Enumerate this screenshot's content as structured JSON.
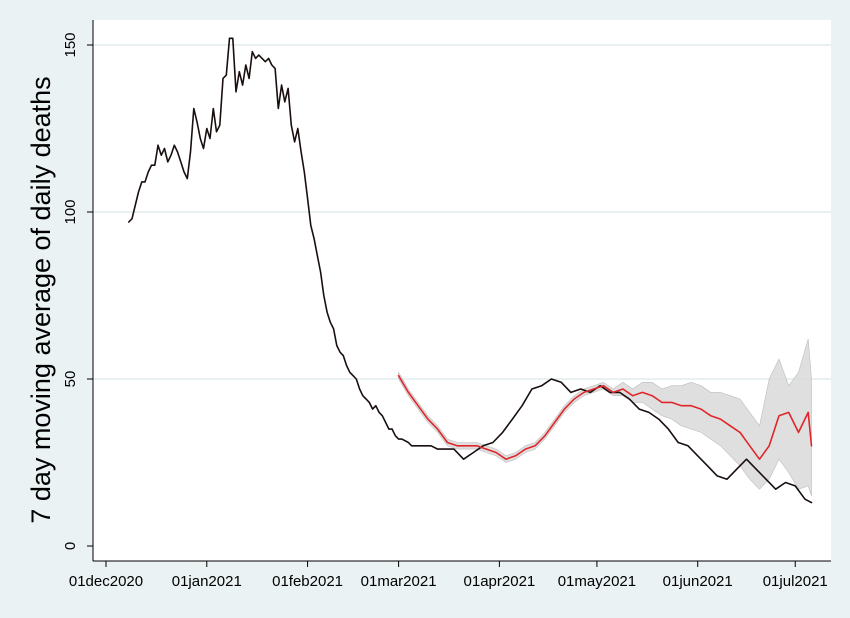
{
  "chart_data": {
    "type": "line",
    "title": "",
    "xlabel": "",
    "ylabel": "7 day moving average of daily deaths",
    "ylim": [
      0,
      150
    ],
    "y_ticks": [
      0,
      50,
      100,
      150
    ],
    "x_range": [
      "2020-11-27",
      "2021-07-12"
    ],
    "x_ticks": [
      {
        "date": "2020-12-01",
        "label": "01dec2020"
      },
      {
        "date": "2021-01-01",
        "label": "01jan2021"
      },
      {
        "date": "2021-02-01",
        "label": "01feb2021"
      },
      {
        "date": "2021-03-01",
        "label": "01mar2021"
      },
      {
        "date": "2021-04-01",
        "label": "01apr2021"
      },
      {
        "date": "2021-05-01",
        "label": "01may2021"
      },
      {
        "date": "2021-06-01",
        "label": "01jun2021"
      },
      {
        "date": "2021-07-01",
        "label": "01jul2021"
      }
    ],
    "grid": true,
    "legend": "none",
    "colors": {
      "background": "#eaf2f3",
      "plot_background": "#ffffff",
      "gridline": "#dce8ea",
      "observed": "#1a0f0f",
      "modelled": "#e0262a",
      "band": "#d9d9d9"
    },
    "series": [
      {
        "style": "observed",
        "x": [
          "2020-12-08",
          "2020-12-09",
          "2020-12-11",
          "2020-12-12",
          "2020-12-13",
          "2020-12-14",
          "2020-12-15",
          "2020-12-16",
          "2020-12-17",
          "2020-12-18",
          "2020-12-19",
          "2020-12-20",
          "2020-12-21",
          "2020-12-22",
          "2020-12-23",
          "2020-12-24",
          "2020-12-25",
          "2020-12-26",
          "2020-12-27",
          "2020-12-28",
          "2020-12-29",
          "2020-12-30",
          "2020-12-31",
          "2021-01-01",
          "2021-01-02",
          "2021-01-03",
          "2021-01-04",
          "2021-01-05",
          "2021-01-06",
          "2021-01-07",
          "2021-01-08",
          "2021-01-09",
          "2021-01-10",
          "2021-01-11",
          "2021-01-12",
          "2021-01-13",
          "2021-01-14",
          "2021-01-15",
          "2021-01-16",
          "2021-01-17",
          "2021-01-18",
          "2021-01-19",
          "2021-01-20",
          "2021-01-21",
          "2021-01-22",
          "2021-01-23",
          "2021-01-24",
          "2021-01-25",
          "2021-01-26",
          "2021-01-27",
          "2021-01-28",
          "2021-01-29",
          "2021-01-30",
          "2021-01-31",
          "2021-02-01",
          "2021-02-02",
          "2021-02-03",
          "2021-02-04",
          "2021-02-05",
          "2021-02-06",
          "2021-02-07",
          "2021-02-08",
          "2021-02-09",
          "2021-02-10",
          "2021-02-11",
          "2021-02-12",
          "2021-02-13",
          "2021-02-14",
          "2021-02-15",
          "2021-02-16",
          "2021-02-17",
          "2021-02-18",
          "2021-02-19",
          "2021-02-20",
          "2021-02-21",
          "2021-02-22",
          "2021-02-23",
          "2021-02-24",
          "2021-02-25",
          "2021-02-26",
          "2021-02-27",
          "2021-02-28",
          "2021-03-01",
          "2021-03-02",
          "2021-03-04",
          "2021-03-05",
          "2021-03-07",
          "2021-03-09",
          "2021-03-11",
          "2021-03-13",
          "2021-03-15",
          "2021-03-18",
          "2021-03-21",
          "2021-03-24",
          "2021-03-27",
          "2021-03-30",
          "2021-04-02",
          "2021-04-05",
          "2021-04-08",
          "2021-04-11",
          "2021-04-14",
          "2021-04-17",
          "2021-04-20",
          "2021-04-23",
          "2021-04-26",
          "2021-04-29",
          "2021-05-02",
          "2021-05-05",
          "2021-05-08",
          "2021-05-11",
          "2021-05-14",
          "2021-05-17",
          "2021-05-20",
          "2021-05-23",
          "2021-05-26",
          "2021-05-29",
          "2021-06-01",
          "2021-06-04",
          "2021-06-07",
          "2021-06-10",
          "2021-06-13",
          "2021-06-16",
          "2021-06-19",
          "2021-06-22",
          "2021-06-25",
          "2021-06-28",
          "2021-07-01",
          "2021-07-04",
          "2021-07-06"
        ],
        "values": [
          97,
          98,
          106,
          109,
          109,
          112,
          114,
          114,
          120,
          117,
          119,
          115,
          117,
          120,
          118,
          115,
          112,
          110,
          118,
          131,
          127,
          122,
          119,
          125,
          122,
          131,
          124,
          126,
          140,
          141,
          152,
          152,
          136,
          142,
          138,
          144,
          140,
          148,
          146,
          147,
          146,
          145,
          146,
          144,
          143,
          131,
          138,
          133,
          137,
          126,
          121,
          125,
          118,
          112,
          104,
          96,
          92,
          87,
          82,
          75,
          70,
          67,
          65,
          60,
          58,
          57,
          54,
          52,
          51,
          50,
          47,
          45,
          44,
          43,
          41,
          42,
          40,
          39,
          37,
          35,
          35,
          33,
          32,
          32,
          31,
          30,
          30,
          30,
          30,
          29,
          29,
          29,
          26,
          28,
          30,
          31,
          34,
          38,
          42,
          47,
          48,
          50,
          49,
          46,
          47,
          46,
          48,
          46,
          46,
          44,
          41,
          40,
          38,
          35,
          31,
          30,
          27,
          24,
          21,
          20,
          23,
          26,
          23,
          20,
          17,
          19,
          18,
          14,
          13
        ],
        "band_lower": [],
        "band_upper": []
      },
      {
        "style": "modelled",
        "x": [
          "2021-03-01",
          "2021-03-04",
          "2021-03-07",
          "2021-03-10",
          "2021-03-13",
          "2021-03-16",
          "2021-03-19",
          "2021-03-22",
          "2021-03-25",
          "2021-03-28",
          "2021-03-31",
          "2021-04-03",
          "2021-04-06",
          "2021-04-09",
          "2021-04-12",
          "2021-04-15",
          "2021-04-18",
          "2021-04-21",
          "2021-04-24",
          "2021-04-27",
          "2021-04-30",
          "2021-05-03",
          "2021-05-06",
          "2021-05-09",
          "2021-05-12",
          "2021-05-15",
          "2021-05-18",
          "2021-05-21",
          "2021-05-24",
          "2021-05-27",
          "2021-05-30",
          "2021-06-02",
          "2021-06-05",
          "2021-06-08",
          "2021-06-11",
          "2021-06-14",
          "2021-06-17",
          "2021-06-20",
          "2021-06-23",
          "2021-06-26",
          "2021-06-29",
          "2021-07-02",
          "2021-07-05",
          "2021-07-06"
        ],
        "values": [
          51,
          46,
          42,
          38,
          35,
          31,
          30,
          30,
          30,
          29,
          28,
          26,
          27,
          29,
          30,
          33,
          37,
          41,
          44,
          46,
          47,
          48,
          46,
          47,
          45,
          46,
          45,
          43,
          43,
          42,
          42,
          41,
          39,
          38,
          36,
          34,
          30,
          26,
          30,
          39,
          40,
          34,
          40,
          30
        ],
        "band_lower": [
          50,
          45,
          41,
          37,
          34,
          30,
          29,
          29,
          29,
          28,
          27,
          25,
          26,
          28,
          29,
          32,
          36,
          40,
          43,
          45,
          46,
          47,
          45,
          45,
          43,
          43,
          41,
          39,
          38,
          36,
          35,
          34,
          32,
          30,
          27,
          24,
          20,
          17,
          20,
          26,
          22,
          17,
          18,
          15
        ],
        "band_upper": [
          52,
          47,
          43,
          39,
          36,
          32,
          31,
          31,
          31,
          30,
          29,
          27,
          28,
          30,
          31,
          34,
          38,
          42,
          45,
          47,
          48,
          49,
          47,
          49,
          47,
          49,
          49,
          47,
          48,
          48,
          49,
          48,
          46,
          46,
          45,
          44,
          40,
          36,
          50,
          56,
          48,
          52,
          62,
          50
        ]
      }
    ]
  }
}
